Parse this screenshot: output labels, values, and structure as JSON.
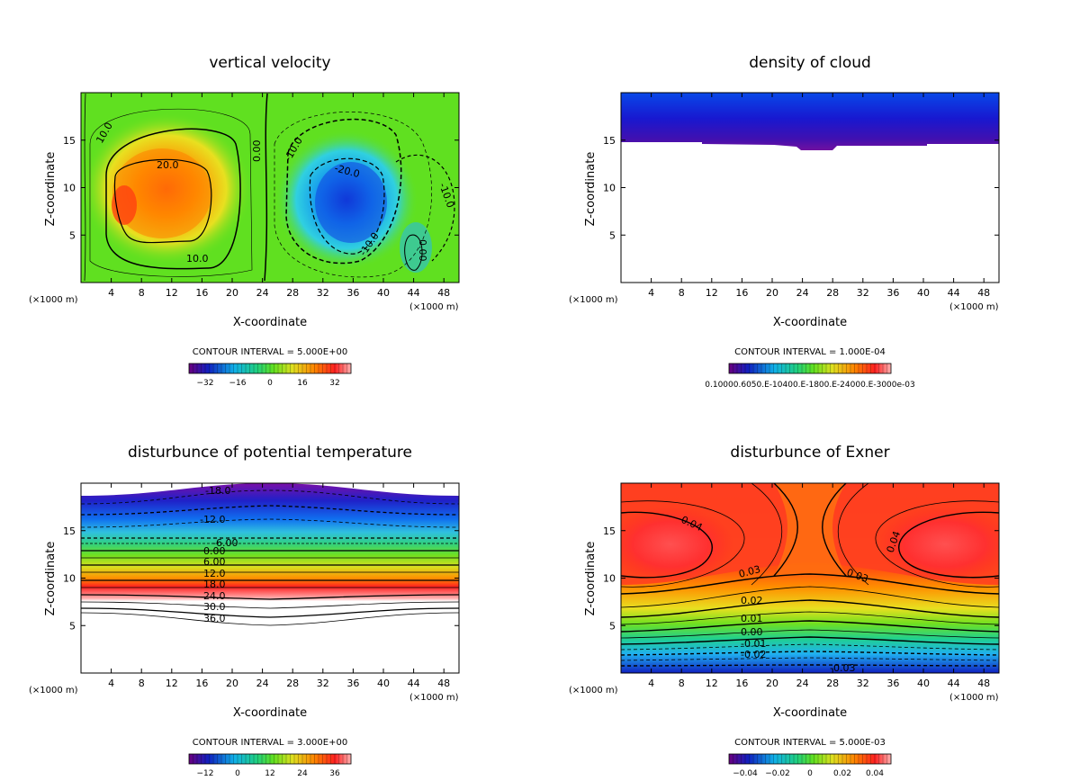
{
  "chart_data": [
    {
      "type": "heatmap",
      "title": "vertical velocity",
      "xlabel": "X-coordinate",
      "ylabel": "Z-coordinate",
      "x_unit": "(×1000 m)",
      "xlim": [
        0,
        50
      ],
      "ylim": [
        0,
        20
      ],
      "x_ticks": [
        "4",
        "8",
        "12",
        "16",
        "20",
        "24",
        "28",
        "32",
        "36",
        "40",
        "44",
        "48"
      ],
      "y_ticks": [
        "5",
        "10",
        "15"
      ],
      "contour_interval": "CONTOUR INTERVAL = 5.000E+00",
      "colorbar_ticks": [
        "−32",
        "−16",
        "0",
        "16",
        "32"
      ],
      "contour_labels": [
        "10.0",
        "20.0",
        "10.0",
        "0.00",
        "-10.0",
        "-20.0",
        "-10.0",
        "-10.0",
        "0.00"
      ],
      "colorscale": "rainbow"
    },
    {
      "type": "heatmap",
      "title": "density of cloud",
      "xlabel": "X-coordinate",
      "ylabel": "Z-coordinate",
      "x_unit": "(×1000 m)",
      "xlim": [
        0,
        50
      ],
      "ylim": [
        0,
        20
      ],
      "x_ticks": [
        "4",
        "8",
        "12",
        "16",
        "20",
        "24",
        "28",
        "32",
        "36",
        "40",
        "44",
        "48"
      ],
      "y_ticks": [
        "5",
        "10",
        "15"
      ],
      "contour_interval": "CONTOUR INTERVAL = 1.000E-04",
      "colorbar_ticks": [
        "0.10000.6050.E-10400.E-1800.E-24000.E-3000e-03"
      ],
      "colorscale": "rainbow"
    },
    {
      "type": "heatmap",
      "title": "disturbunce of potential temperature",
      "xlabel": "X-coordinate",
      "ylabel": "Z-coordinate",
      "x_unit": "(×1000 m)",
      "xlim": [
        0,
        50
      ],
      "ylim": [
        0,
        20
      ],
      "x_ticks": [
        "4",
        "8",
        "12",
        "16",
        "20",
        "24",
        "28",
        "32",
        "36",
        "40",
        "44",
        "48"
      ],
      "y_ticks": [
        "5",
        "10",
        "15"
      ],
      "contour_interval": "CONTOUR INTERVAL = 3.000E+00",
      "colorbar_ticks": [
        "−12",
        "0",
        "12",
        "24",
        "36"
      ],
      "contour_labels": [
        "-18.0",
        "-12.0",
        "-6.00",
        "0.00",
        "6.00",
        "12.0",
        "18.0",
        "24.0",
        "30.0",
        "36.0"
      ],
      "colorscale": "rainbow"
    },
    {
      "type": "heatmap",
      "title": "disturbunce of Exner",
      "xlabel": "X-coordinate",
      "ylabel": "Z-coordinate",
      "x_unit": "(×1000 m)",
      "xlim": [
        0,
        50
      ],
      "ylim": [
        0,
        20
      ],
      "x_ticks": [
        "4",
        "8",
        "12",
        "16",
        "20",
        "24",
        "28",
        "32",
        "36",
        "40",
        "44",
        "48"
      ],
      "y_ticks": [
        "5",
        "10",
        "15"
      ],
      "contour_interval": "CONTOUR INTERVAL = 5.000E-03",
      "colorbar_ticks": [
        "−0.04",
        "−0.02",
        "0",
        "0.02",
        "0.04"
      ],
      "contour_labels": [
        "0.04",
        "0.04",
        "0.03",
        "0.03",
        "0.02",
        "0.01",
        "0.00",
        "-0.01",
        "-0.02",
        "-0.03"
      ],
      "colorscale": "rainbow"
    }
  ]
}
